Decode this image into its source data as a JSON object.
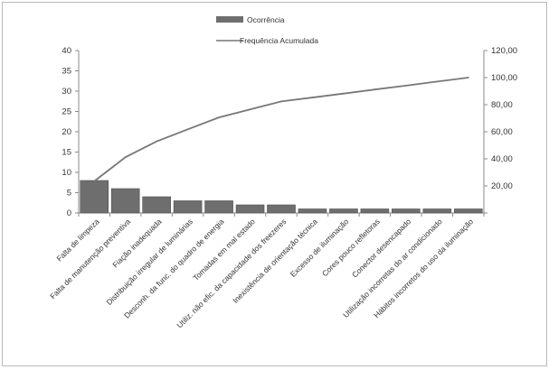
{
  "chart_data": {
    "type": "bar",
    "title": "",
    "categories": [
      "Falta de limpeza",
      "Falta de manutenção preventiva",
      "Fiação inadequada",
      "Distribuição irregular de luminárias",
      "Desconh. da func. do quadro de energia",
      "Tomadas em mal estado",
      "Utiliz. não efic. da capacidade dos freezeres",
      "Inexistência de orientação técnica",
      "Excesso de iluminação",
      "Cores pouco refletoras",
      "Conector desencapado",
      "Utilização incorretas do ar condicionado",
      "Hábitos incorretos do uso da iluminação"
    ],
    "series": [
      {
        "name": "Ocorrência",
        "type": "bar",
        "axis": "left",
        "color": "#6e6e6e",
        "values": [
          8,
          6,
          4,
          3,
          3,
          2,
          2,
          1,
          1,
          1,
          1,
          1,
          1
        ]
      },
      {
        "name": "Frequência Acumulada",
        "type": "line",
        "axis": "right",
        "color": "#777777",
        "values": [
          23.5,
          41.2,
          52.9,
          61.8,
          70.6,
          76.5,
          82.4,
          85.3,
          88.2,
          91.2,
          94.1,
          97.1,
          100.0
        ]
      }
    ],
    "y_left": {
      "min": 0,
      "max": 40,
      "ticks": [
        "0",
        "5",
        "10",
        "15",
        "20",
        "25",
        "30",
        "35",
        "40"
      ]
    },
    "y_right": {
      "min": 0,
      "max": 120,
      "ticks": [
        "",
        "20,00",
        "40,00",
        "60,00",
        "80,00",
        "100,00",
        "120,00"
      ]
    },
    "grid": false,
    "legend": "top-center"
  }
}
